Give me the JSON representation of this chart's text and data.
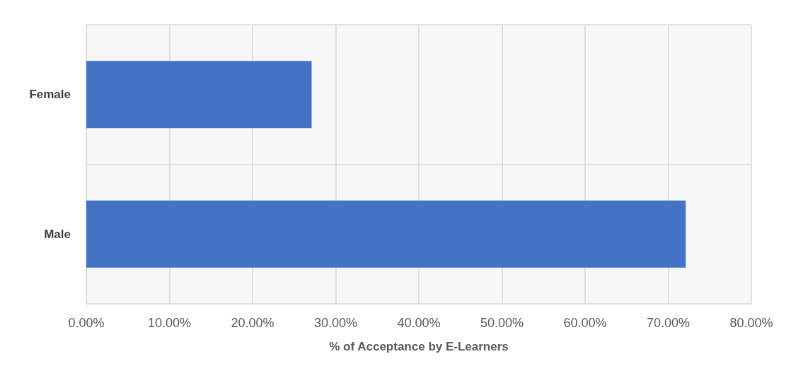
{
  "chart_data": {
    "type": "bar",
    "orientation": "horizontal",
    "categories": [
      "Female",
      "Male"
    ],
    "values": [
      27.1,
      72.1
    ],
    "color": "#4472c4",
    "xlabel": "% of Acceptance by E-Learners",
    "xlim": [
      0,
      80
    ],
    "xticks": [
      {
        "value": 0,
        "label": "0.00%"
      },
      {
        "value": 10,
        "label": "10.00%"
      },
      {
        "value": 20,
        "label": "20.00%"
      },
      {
        "value": 30,
        "label": "30.00%"
      },
      {
        "value": 40,
        "label": "40.00%"
      },
      {
        "value": 50,
        "label": "50.00%"
      },
      {
        "value": 60,
        "label": "60.00%"
      },
      {
        "value": 70,
        "label": "70.00%"
      },
      {
        "value": 80,
        "label": "80.00%"
      }
    ],
    "grid": true
  }
}
